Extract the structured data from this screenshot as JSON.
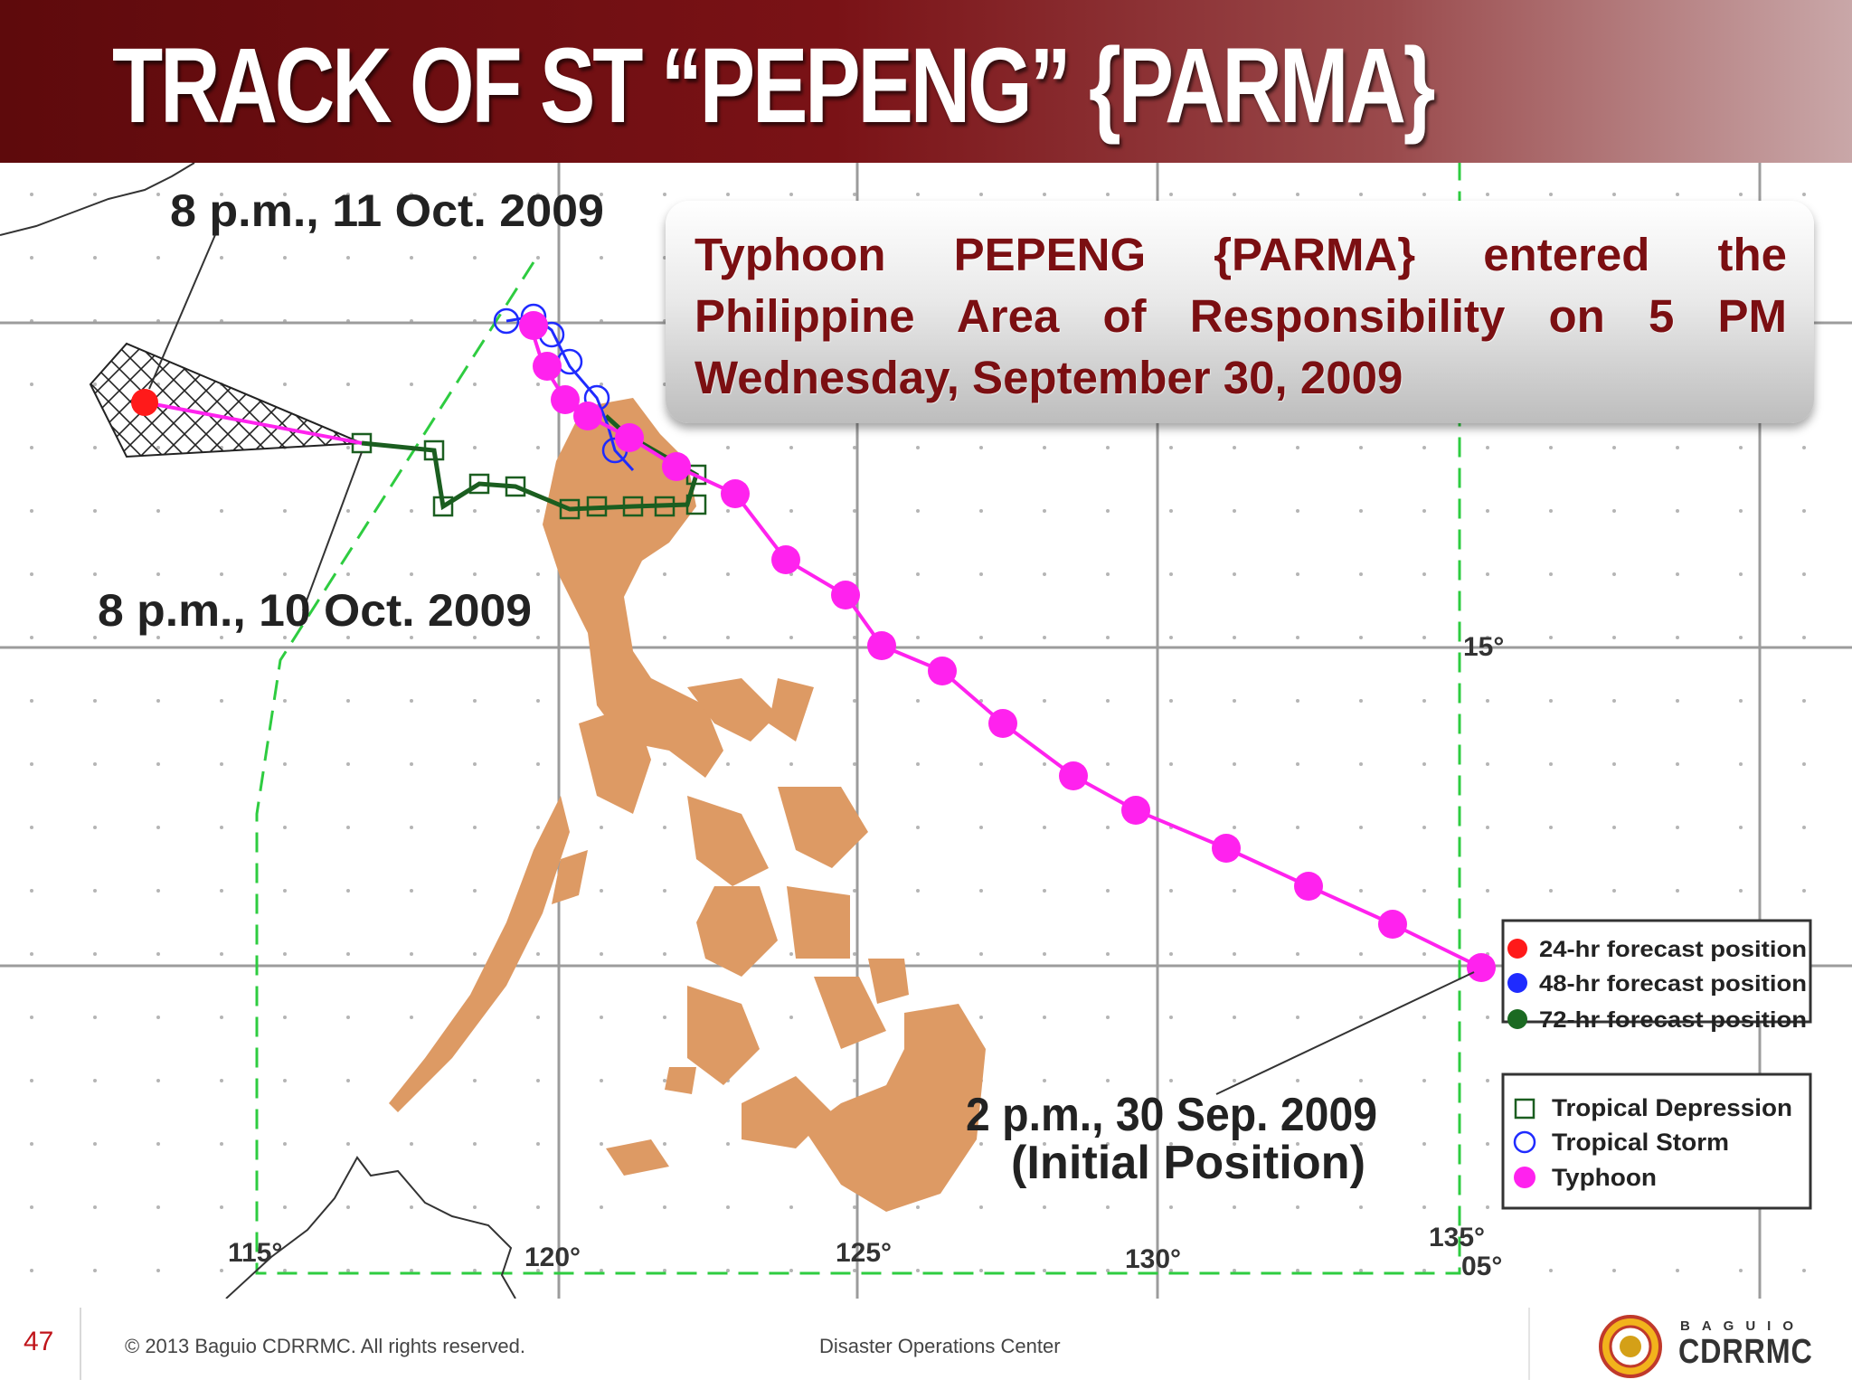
{
  "slide": {
    "title": "TRACK OF ST “PEPENG” {PARMA}",
    "callout": "Typhoon PEPENG {PARMA} entered the Philippine Area of Responsibility on 5 PM Wednesday, September 30, 2009"
  },
  "map": {
    "annotations": {
      "final": "8 p.m., 11 Oct. 2009",
      "oct10": "8 p.m., 10 Oct. 2009",
      "initial_line1": "2 p.m., 30 Sep. 2009",
      "initial_line2": "(Initial Position)"
    },
    "grid_labels": {
      "lon_115": "115°",
      "lon_120": "120°",
      "lon_125": "125°",
      "lon_130": "130°",
      "lon_135": "135°",
      "lat_05": "05°",
      "lat_15": "15°"
    },
    "legend_forecast": [
      {
        "label": "24-hr forecast position",
        "color": "#ff1a1a"
      },
      {
        "label": "48-hr forecast position",
        "color": "#1f2bff"
      },
      {
        "label": "72-hr forecast position",
        "color": "#1b6a22"
      }
    ],
    "legend_intensity": [
      {
        "label": "Tropical Depression",
        "symbol": "square",
        "color": "#1b5e20"
      },
      {
        "label": "Tropical Storm",
        "symbol": "circle",
        "color": "#1f2bff"
      },
      {
        "label": "Typhoon",
        "symbol": "dot",
        "color": "#ff22ee"
      }
    ],
    "colors": {
      "land": "#dd9a64",
      "typhoon_track": "#ff22ee",
      "storm_track": "#1f2bff",
      "depression_track": "#1b5e20",
      "par_boundary": "#2ecc40",
      "forecast_point": "#ff1a1a"
    }
  },
  "footer": {
    "page_number": "47",
    "copyright": "© 2013 Baguio CDRRMC. All rights reserved.",
    "center": "Disaster Operations Center",
    "logo_small": "BAGUIO",
    "logo_big": "CDRRMC"
  }
}
